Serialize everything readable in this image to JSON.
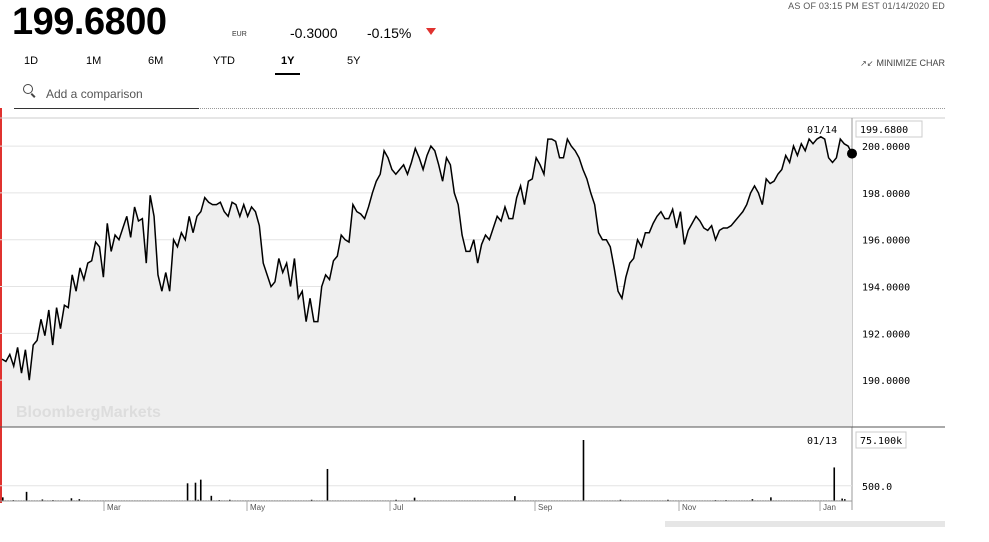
{
  "header": {
    "price": "199.6800",
    "currency": "EUR",
    "change": "-0.3000",
    "change_pct": "-0.15%",
    "as_of": "AS OF 03:15 PM EST 01/14/2020 ED",
    "down_color": "#e0322f"
  },
  "ranges": [
    {
      "label": "1D",
      "active": false
    },
    {
      "label": "1M",
      "active": false
    },
    {
      "label": "6M",
      "active": false
    },
    {
      "label": "YTD",
      "active": false
    },
    {
      "label": "1Y",
      "active": true
    },
    {
      "label": "5Y",
      "active": false
    }
  ],
  "minimize_label": "MINIMIZE CHAR",
  "comparison": {
    "placeholder": "Add a comparison"
  },
  "watermark": "BloombergMarkets",
  "chart_data": [
    {
      "type": "line",
      "series": [
        {
          "values": [
            190.9,
            190.8,
            191.1,
            190.6,
            191.4,
            190.3,
            191.3,
            190.0,
            191.5,
            191.7,
            192.6,
            191.9,
            193.0,
            191.5,
            193.1,
            192.2,
            193.2,
            193.1,
            194.5,
            193.8,
            194.8,
            194.3,
            195.0,
            195.1,
            195.9,
            195.7,
            194.4,
            196.7,
            195.5,
            196.2,
            196.0,
            196.5,
            197.0,
            196.1,
            197.4,
            196.8,
            196.9,
            195.0,
            197.9,
            197.0,
            194.5,
            193.8,
            194.6,
            193.8,
            196.0,
            195.7,
            196.3,
            196.0,
            197.0,
            196.3,
            197.0,
            197.2,
            197.8,
            197.6,
            197.5,
            197.5,
            197.6,
            197.2,
            197.0,
            197.6,
            197.5,
            197.0,
            197.5,
            197.0,
            197.4,
            197.2,
            196.6,
            195.0,
            194.5,
            194.0,
            194.2,
            195.2,
            194.6,
            195.0,
            194.0,
            195.2,
            193.5,
            193.8,
            192.5,
            193.5,
            192.5,
            192.5,
            194.0,
            194.5,
            194.3,
            195.1,
            195.3,
            196.2,
            196.0,
            195.9,
            197.5,
            197.2,
            197.1,
            196.9,
            197.4,
            198.0,
            198.5,
            198.8,
            199.8,
            199.5,
            199.0,
            198.8,
            199.0,
            199.2,
            198.8,
            199.3,
            199.9,
            199.5,
            199.0,
            199.6,
            200.0,
            199.8,
            199.2,
            198.5,
            199.5,
            199.2,
            198.0,
            197.5,
            196.2,
            195.5,
            195.5,
            196.0,
            195.0,
            195.8,
            196.2,
            196.0,
            196.5,
            197.0,
            196.8,
            197.4,
            196.9,
            196.9,
            197.8,
            198.3,
            197.5,
            198.5,
            198.6,
            199.5,
            199.2,
            198.8,
            200.3,
            200.3,
            200.2,
            199.5,
            199.5,
            200.3,
            200.0,
            199.8,
            199.5,
            199.0,
            198.6,
            198.0,
            197.5,
            196.3,
            196.0,
            196.0,
            195.7,
            194.8,
            193.8,
            193.5,
            194.4,
            195.0,
            195.2,
            196.0,
            195.7,
            196.3,
            196.3,
            196.7,
            197.0,
            197.2,
            196.9,
            196.9,
            197.3,
            196.5,
            197.2,
            195.8,
            196.4,
            196.7,
            197.0,
            196.8,
            196.5,
            196.4,
            196.6,
            196.0,
            196.4,
            196.5,
            196.5,
            196.6,
            196.8,
            197.0,
            197.2,
            197.5,
            198.0,
            198.3,
            198.0,
            197.5,
            198.6,
            198.4,
            198.5,
            198.8,
            199.0,
            199.6,
            199.3,
            200.0,
            199.6,
            200.1,
            199.8,
            200.3,
            200.1,
            200.3,
            200.4,
            200.3,
            199.5,
            199.3,
            199.5,
            200.3,
            200.1,
            200.0,
            199.68
          ]
        }
      ],
      "ylim": [
        188.0,
        201.2
      ],
      "ytick_values": [
        190,
        192,
        194,
        196,
        198,
        200
      ],
      "ytick_labels": [
        "190.0000",
        "192.0000",
        "194.0000",
        "196.0000",
        "198.0000",
        "200.0000"
      ],
      "last_date_label": "01/14",
      "last_value_label": "199.6800",
      "grid": true
    },
    {
      "type": "bar",
      "values": [
        120,
        20,
        20,
        20,
        30,
        20,
        20,
        20,
        20,
        300,
        20,
        20,
        20,
        20,
        20,
        50,
        20,
        20,
        20,
        30,
        20,
        20,
        20,
        20,
        20,
        20,
        90,
        20,
        20,
        60,
        20,
        20,
        20,
        20,
        20,
        20,
        20,
        20,
        20,
        20,
        20,
        20,
        20,
        20,
        20,
        20,
        20,
        20,
        20,
        20,
        20,
        20,
        20,
        20,
        20,
        20,
        20,
        20,
        20,
        20,
        20,
        20,
        20,
        20,
        20,
        20,
        20,
        20,
        20,
        20,
        580,
        20,
        20,
        600,
        40,
        700,
        20,
        20,
        20,
        170,
        20,
        20,
        30,
        20,
        20,
        20,
        40,
        20,
        20,
        20,
        20,
        20,
        20,
        20,
        20,
        20,
        20,
        20,
        20,
        20,
        20,
        20,
        20,
        20,
        20,
        20,
        20,
        20,
        20,
        20,
        20,
        20,
        20,
        20,
        20,
        20,
        20,
        40,
        20,
        20,
        20,
        20,
        20,
        1050,
        20,
        20,
        20,
        20,
        20,
        20,
        20,
        20,
        20,
        20,
        20,
        20,
        20,
        20,
        20,
        20,
        20,
        20,
        20,
        20,
        20,
        20,
        20,
        20,
        20,
        40,
        20,
        20,
        20,
        20,
        20,
        20,
        110,
        20,
        20,
        20,
        20,
        20,
        20,
        20,
        20,
        20,
        20,
        20,
        20,
        20,
        20,
        20,
        20,
        20,
        20,
        20,
        20,
        20,
        20,
        20,
        20,
        20,
        20,
        20,
        20,
        20,
        20,
        20,
        20,
        20,
        20,
        20,
        20,
        20,
        160,
        20,
        20,
        20,
        20,
        20,
        20,
        20,
        20,
        20,
        20,
        20,
        20,
        20,
        20,
        20,
        20,
        20,
        20,
        20,
        20,
        20,
        20,
        20,
        20,
        20,
        2000,
        20,
        20,
        20,
        20,
        20,
        20,
        20,
        20,
        20,
        20,
        20,
        20,
        20,
        40,
        20,
        20,
        20,
        20,
        20,
        20,
        20,
        20,
        20,
        20,
        20,
        20,
        20,
        20,
        20,
        20,
        20,
        40,
        20,
        20,
        20,
        20,
        20,
        20,
        20,
        20,
        20,
        20,
        20,
        20,
        20,
        20,
        20,
        20,
        20,
        30,
        20,
        20,
        20,
        30,
        20,
        20,
        20,
        20,
        20,
        20,
        20,
        20,
        20,
        60,
        20,
        20,
        20,
        20,
        20,
        20,
        120,
        20,
        20,
        20,
        20,
        20,
        20,
        20,
        20,
        20,
        20,
        20,
        20,
        20,
        20,
        20,
        20,
        20,
        20,
        20,
        20,
        20,
        20,
        20,
        1100,
        20,
        20,
        80,
        60
      ],
      "ylim": [
        0,
        2000
      ],
      "ytick_values": [
        500
      ],
      "ytick_labels": [
        "500.0"
      ],
      "last_date_label": "01/13",
      "last_value_label": "75.100k"
    }
  ],
  "x_axis": {
    "months": [
      "Mar",
      "May",
      "Jul",
      "Sep",
      "Nov",
      "Jan"
    ]
  }
}
